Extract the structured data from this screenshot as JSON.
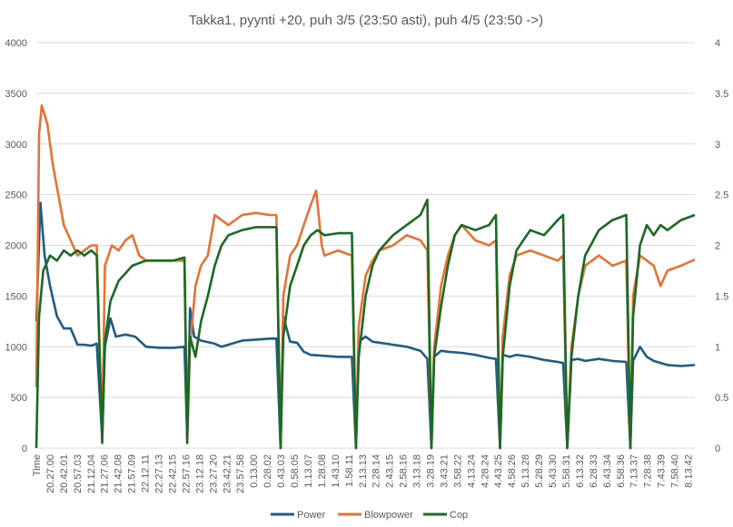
{
  "chart_data": {
    "type": "line",
    "title": "Takka1, pyynti +20, puh 3/5 (23:50 asti), puh 4/5 (23:50 ->)",
    "x_label_first": "Time",
    "categories": [
      "20.27.00",
      "20.42.01",
      "20.57.03",
      "21.12.04",
      "21.27.06",
      "21.42.08",
      "21.57.09",
      "22.12.11",
      "22.27.13",
      "22.42.15",
      "22.57.16",
      "23.12.18",
      "23.27.20",
      "23.42.21",
      "23.57.58",
      "0.13.00",
      "0.28.02",
      "0.43.03",
      "0.58.05",
      "1.13.07",
      "1.28.08",
      "1.43.10",
      "1.58.11",
      "2.13.13",
      "2.28.14",
      "2.43.15",
      "2.58.16",
      "3.13.18",
      "3.28.19",
      "3.43.21",
      "3.58.22",
      "4.13.24",
      "4.28.24",
      "4.43.25",
      "4.58.26",
      "5.13.28",
      "5.28.29",
      "5.43.30",
      "5.58.31",
      "6.13.32",
      "6.28.33",
      "6.43.34",
      "6.58.36",
      "7.13.37",
      "7.28.38",
      "7.43.39",
      "7.58.40",
      "8.13.42"
    ],
    "y_left": {
      "min": 0,
      "max": 4000,
      "ticks": [
        "0",
        "500",
        "1000",
        "1500",
        "2000",
        "2500",
        "3000",
        "3500",
        "4000"
      ]
    },
    "y_right": {
      "min": 0,
      "max": 4,
      "ticks": [
        "0",
        "0.5",
        "1",
        "1.5",
        "2",
        "2.5",
        "3",
        "3.5",
        "4"
      ]
    },
    "series": [
      {
        "name": "Power",
        "color": "#1f5c85",
        "axis": "left",
        "points": [
          [
            0,
            1250
          ],
          [
            0.3,
            2420
          ],
          [
            0.6,
            1900
          ],
          [
            1,
            1600
          ],
          [
            1.5,
            1300
          ],
          [
            2,
            1180
          ],
          [
            2.5,
            1180
          ],
          [
            3,
            1020
          ],
          [
            3.5,
            1020
          ],
          [
            4,
            1010
          ],
          [
            4.4,
            1030
          ],
          [
            4.8,
            100
          ],
          [
            5,
            1000
          ],
          [
            5.4,
            1280
          ],
          [
            5.8,
            1100
          ],
          [
            6.5,
            1120
          ],
          [
            7.2,
            1100
          ],
          [
            8,
            1000
          ],
          [
            9,
            990
          ],
          [
            10,
            990
          ],
          [
            10.8,
            1000
          ],
          [
            11,
            100
          ],
          [
            11.2,
            1380
          ],
          [
            11.5,
            1100
          ],
          [
            12,
            1060
          ],
          [
            13,
            1030
          ],
          [
            13.5,
            1000
          ],
          [
            14,
            1020
          ],
          [
            15,
            1060
          ],
          [
            16,
            1070
          ],
          [
            17,
            1080
          ],
          [
            17.5,
            1080
          ],
          [
            17.8,
            0
          ],
          [
            18,
            1300
          ],
          [
            18.5,
            1050
          ],
          [
            19,
            1040
          ],
          [
            19.5,
            950
          ],
          [
            20,
            920
          ],
          [
            21,
            910
          ],
          [
            22,
            900
          ],
          [
            23,
            900
          ],
          [
            23.3,
            0
          ],
          [
            23.5,
            1050
          ],
          [
            24,
            1100
          ],
          [
            24.5,
            1050
          ],
          [
            25,
            1040
          ],
          [
            26,
            1020
          ],
          [
            27,
            1000
          ],
          [
            28,
            960
          ],
          [
            28.5,
            880
          ],
          [
            28.8,
            0
          ],
          [
            29,
            900
          ],
          [
            29.5,
            960
          ],
          [
            30,
            950
          ],
          [
            31,
            940
          ],
          [
            32,
            920
          ],
          [
            33,
            890
          ],
          [
            33.5,
            880
          ],
          [
            33.8,
            0
          ],
          [
            34,
            920
          ],
          [
            34.5,
            900
          ],
          [
            35,
            920
          ],
          [
            36,
            900
          ],
          [
            37,
            870
          ],
          [
            38,
            850
          ],
          [
            38.4,
            840
          ],
          [
            38.7,
            0
          ],
          [
            39,
            870
          ],
          [
            39.5,
            880
          ],
          [
            40,
            860
          ],
          [
            41,
            880
          ],
          [
            42,
            860
          ],
          [
            43,
            850
          ],
          [
            43.3,
            0
          ],
          [
            43.5,
            860
          ],
          [
            44,
            1000
          ],
          [
            44.5,
            900
          ],
          [
            45,
            860
          ],
          [
            46,
            820
          ],
          [
            47,
            810
          ],
          [
            48,
            820
          ]
        ]
      },
      {
        "name": "Blowpower",
        "color": "#e97132",
        "axis": "left",
        "points": [
          [
            0,
            600
          ],
          [
            0.2,
            3100
          ],
          [
            0.4,
            3380
          ],
          [
            0.8,
            3200
          ],
          [
            1.2,
            2800
          ],
          [
            1.6,
            2500
          ],
          [
            2,
            2200
          ],
          [
            2.5,
            2050
          ],
          [
            3,
            1900
          ],
          [
            3.5,
            1950
          ],
          [
            4,
            2000
          ],
          [
            4.4,
            2000
          ],
          [
            4.8,
            100
          ],
          [
            5,
            1800
          ],
          [
            5.5,
            2000
          ],
          [
            6,
            1950
          ],
          [
            6.5,
            2050
          ],
          [
            7,
            2100
          ],
          [
            7.5,
            1900
          ],
          [
            8,
            1850
          ],
          [
            9,
            1850
          ],
          [
            10,
            1850
          ],
          [
            10.8,
            1850
          ],
          [
            11,
            100
          ],
          [
            11.2,
            1000
          ],
          [
            11.6,
            1600
          ],
          [
            12,
            1800
          ],
          [
            12.5,
            1900
          ],
          [
            13,
            2300
          ],
          [
            13.5,
            2250
          ],
          [
            14,
            2200
          ],
          [
            15,
            2300
          ],
          [
            16,
            2320
          ],
          [
            17,
            2300
          ],
          [
            17.5,
            2300
          ],
          [
            17.8,
            0
          ],
          [
            18,
            1500
          ],
          [
            18.5,
            1900
          ],
          [
            19,
            2000
          ],
          [
            19.5,
            2200
          ],
          [
            20,
            2400
          ],
          [
            20.4,
            2540
          ],
          [
            20.8,
            2000
          ],
          [
            21,
            1900
          ],
          [
            22,
            1950
          ],
          [
            23,
            1900
          ],
          [
            23.3,
            0
          ],
          [
            23.5,
            1200
          ],
          [
            24,
            1700
          ],
          [
            24.5,
            1850
          ],
          [
            25,
            1950
          ],
          [
            26,
            2000
          ],
          [
            27,
            2100
          ],
          [
            28,
            2050
          ],
          [
            28.5,
            1950
          ],
          [
            28.8,
            0
          ],
          [
            29,
            1000
          ],
          [
            29.5,
            1600
          ],
          [
            30,
            1900
          ],
          [
            30.5,
            2100
          ],
          [
            31,
            2200
          ],
          [
            32,
            2050
          ],
          [
            33,
            2000
          ],
          [
            33.5,
            2050
          ],
          [
            33.8,
            0
          ],
          [
            34,
            1100
          ],
          [
            34.5,
            1700
          ],
          [
            35,
            1900
          ],
          [
            36,
            1950
          ],
          [
            37,
            1900
          ],
          [
            38,
            1850
          ],
          [
            38.4,
            1900
          ],
          [
            38.7,
            0
          ],
          [
            39,
            1000
          ],
          [
            39.5,
            1500
          ],
          [
            40,
            1800
          ],
          [
            41,
            1900
          ],
          [
            42,
            1800
          ],
          [
            43,
            1850
          ],
          [
            43.3,
            0
          ],
          [
            43.5,
            1500
          ],
          [
            44,
            1900
          ],
          [
            44.5,
            1850
          ],
          [
            45,
            1800
          ],
          [
            45.5,
            1600
          ],
          [
            46,
            1750
          ],
          [
            47,
            1800
          ],
          [
            48,
            1860
          ]
        ]
      },
      {
        "name": "Cop",
        "color": "#196b24",
        "axis": "right",
        "points": [
          [
            0,
            0
          ],
          [
            0.2,
            1.3
          ],
          [
            0.5,
            1.75
          ],
          [
            1,
            1.9
          ],
          [
            1.5,
            1.85
          ],
          [
            2,
            1.95
          ],
          [
            2.5,
            1.9
          ],
          [
            3,
            1.95
          ],
          [
            3.5,
            1.9
          ],
          [
            4,
            1.95
          ],
          [
            4.4,
            1.9
          ],
          [
            4.8,
            0.05
          ],
          [
            5,
            1.05
          ],
          [
            5.4,
            1.45
          ],
          [
            6,
            1.65
          ],
          [
            7,
            1.8
          ],
          [
            8,
            1.85
          ],
          [
            9,
            1.85
          ],
          [
            10,
            1.85
          ],
          [
            10.8,
            1.88
          ],
          [
            11,
            0.05
          ],
          [
            11.2,
            1.1
          ],
          [
            11.6,
            0.9
          ],
          [
            12,
            1.25
          ],
          [
            12.5,
            1.5
          ],
          [
            13,
            1.8
          ],
          [
            13.5,
            2.0
          ],
          [
            14,
            2.1
          ],
          [
            15,
            2.15
          ],
          [
            16,
            2.18
          ],
          [
            17,
            2.18
          ],
          [
            17.5,
            2.18
          ],
          [
            17.8,
            0
          ],
          [
            18,
            1.1
          ],
          [
            18.5,
            1.6
          ],
          [
            19,
            1.8
          ],
          [
            19.5,
            2.0
          ],
          [
            20,
            2.1
          ],
          [
            20.5,
            2.15
          ],
          [
            21,
            2.1
          ],
          [
            22,
            2.12
          ],
          [
            23,
            2.12
          ],
          [
            23.3,
            0
          ],
          [
            23.5,
            0.9
          ],
          [
            24,
            1.5
          ],
          [
            24.5,
            1.8
          ],
          [
            25,
            1.95
          ],
          [
            26,
            2.1
          ],
          [
            27,
            2.2
          ],
          [
            28,
            2.3
          ],
          [
            28.5,
            2.45
          ],
          [
            28.8,
            0
          ],
          [
            29,
            0.9
          ],
          [
            29.5,
            1.4
          ],
          [
            30,
            1.8
          ],
          [
            30.5,
            2.1
          ],
          [
            31,
            2.2
          ],
          [
            32,
            2.15
          ],
          [
            33,
            2.2
          ],
          [
            33.5,
            2.3
          ],
          [
            33.8,
            0
          ],
          [
            34,
            0.9
          ],
          [
            34.5,
            1.6
          ],
          [
            35,
            1.95
          ],
          [
            36,
            2.15
          ],
          [
            37,
            2.1
          ],
          [
            38,
            2.25
          ],
          [
            38.4,
            2.3
          ],
          [
            38.7,
            0
          ],
          [
            39,
            0.9
          ],
          [
            39.5,
            1.5
          ],
          [
            40,
            1.9
          ],
          [
            41,
            2.15
          ],
          [
            42,
            2.25
          ],
          [
            43,
            2.3
          ],
          [
            43.3,
            0
          ],
          [
            43.5,
            1.3
          ],
          [
            44,
            2.0
          ],
          [
            44.5,
            2.2
          ],
          [
            45,
            2.1
          ],
          [
            45.5,
            2.2
          ],
          [
            46,
            2.15
          ],
          [
            47,
            2.25
          ],
          [
            48,
            2.3
          ]
        ]
      }
    ],
    "legend_position": "bottom"
  }
}
